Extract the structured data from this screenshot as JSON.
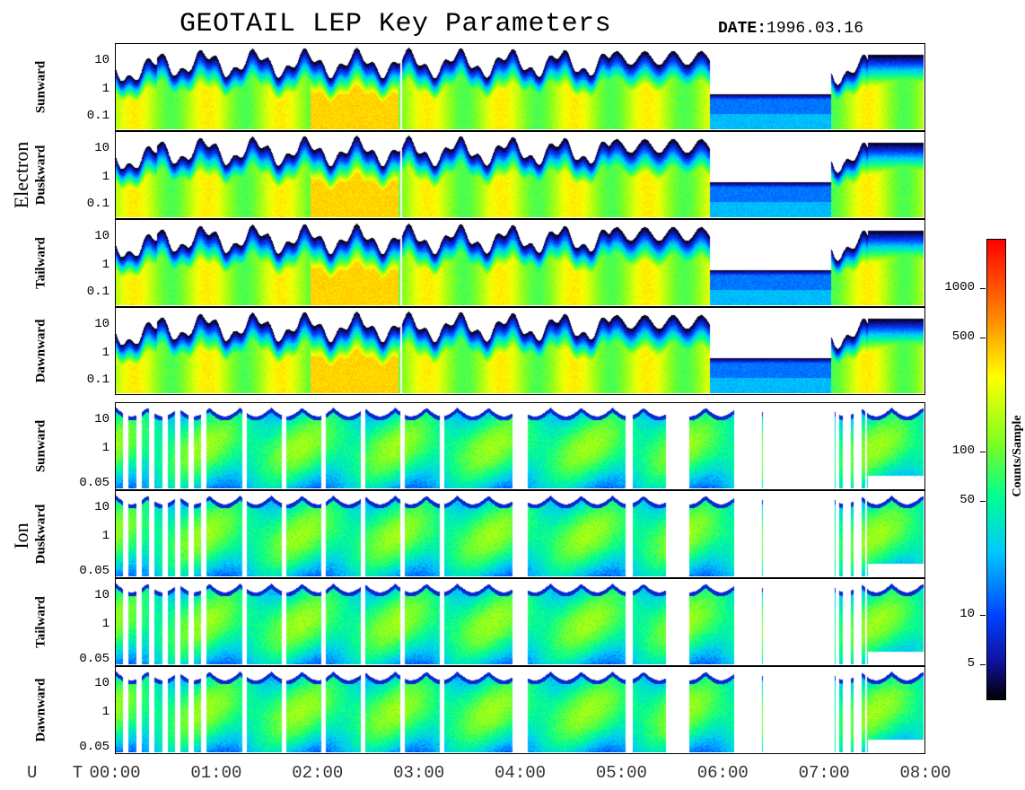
{
  "title": "GEOTAIL LEP Key Parameters",
  "date_label": "DATE:",
  "date_value": "1996.03.16",
  "x_axis": {
    "prefix": "U T",
    "ticks": [
      "00:00",
      "01:00",
      "02:00",
      "03:00",
      "04:00",
      "05:00",
      "06:00",
      "07:00",
      "08:00"
    ]
  },
  "groups": {
    "electron": "Electron",
    "ion": "Ion"
  },
  "colorbar": {
    "label": "Counts/Sample",
    "ticks": [
      "1000",
      "500",
      "100",
      "50",
      "10",
      "5"
    ],
    "colors": [
      "#000000",
      "#10109a",
      "#0040ff",
      "#00c8ff",
      "#00ff90",
      "#80ff20",
      "#ffff00",
      "#ff8000",
      "#ff0000"
    ]
  },
  "chart_data": {
    "type": "heatmap",
    "title": "GEOTAIL LEP Key Parameters",
    "date": "1996.03.16",
    "x_range": [
      "00:00",
      "08:00"
    ],
    "color_scale": "log",
    "colorbar_label": "Counts/Sample",
    "panels": [
      {
        "group": "Electron",
        "name": "Sunward",
        "y_ticks": [
          "10",
          "1",
          "0.1"
        ],
        "y_scale": "log"
      },
      {
        "group": "Electron",
        "name": "Duskward",
        "y_ticks": [
          "10",
          "1",
          "0.1"
        ],
        "y_scale": "log"
      },
      {
        "group": "Electron",
        "name": "Tailward",
        "y_ticks": [
          "10",
          "1",
          "0.1"
        ],
        "y_scale": "log"
      },
      {
        "group": "Electron",
        "name": "Dawnward",
        "y_ticks": [
          "10",
          "1",
          "0.1"
        ],
        "y_scale": "log"
      },
      {
        "group": "Ion",
        "name": "Sunward",
        "y_ticks": [
          "10",
          "1",
          "0.05"
        ],
        "y_scale": "log"
      },
      {
        "group": "Ion",
        "name": "Duskward",
        "y_ticks": [
          "10",
          "1",
          "0.05"
        ],
        "y_scale": "log"
      },
      {
        "group": "Ion",
        "name": "Tailward",
        "y_ticks": [
          "10",
          "1",
          "0.05"
        ],
        "y_scale": "log"
      },
      {
        "group": "Ion",
        "name": "Dawnward",
        "y_ticks": [
          "10",
          "1",
          "0.05"
        ],
        "y_scale": "log"
      }
    ]
  }
}
